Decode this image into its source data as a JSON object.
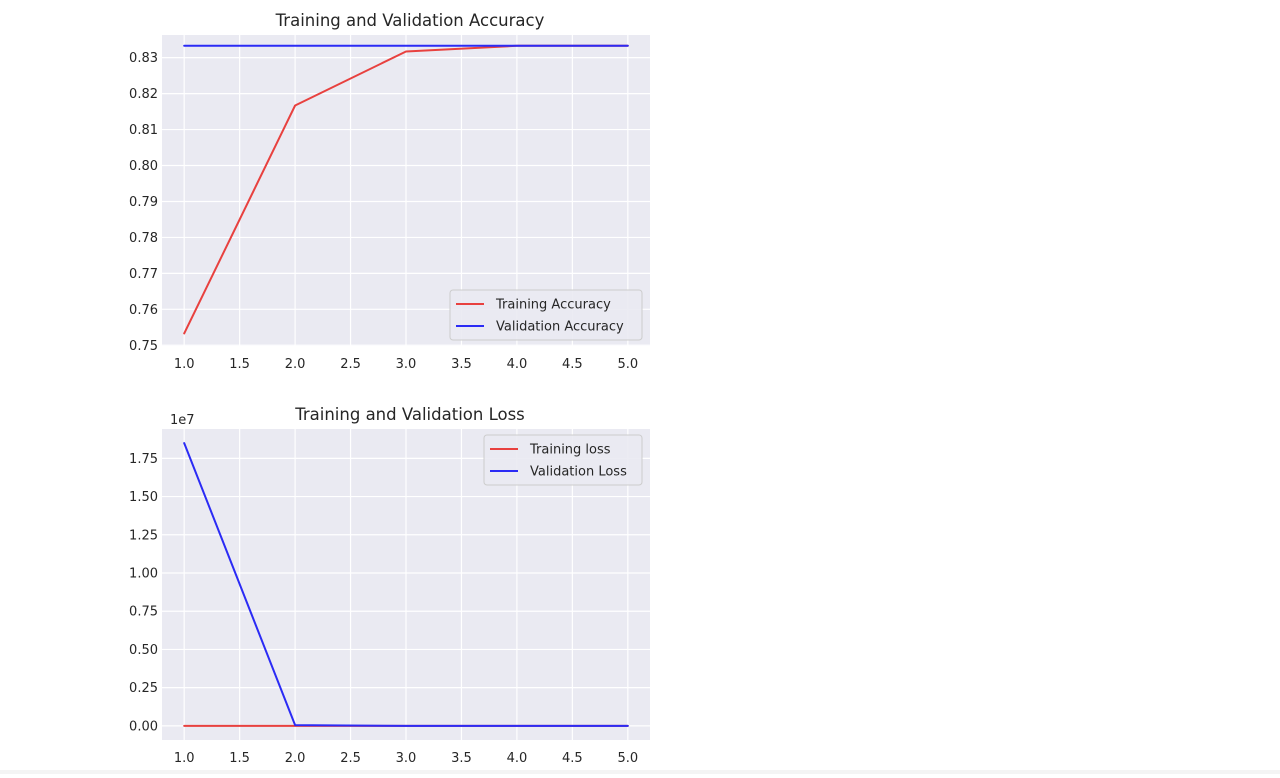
{
  "chart_data": [
    {
      "type": "line",
      "title": "Training and Validation Accuracy",
      "xlabel": "",
      "ylabel": "",
      "x": [
        1,
        2,
        3,
        4,
        5
      ],
      "xlim": [
        0.8,
        5.2
      ],
      "ylim": [
        0.7498,
        0.8363
      ],
      "xticks": [
        1.0,
        1.5,
        2.0,
        2.5,
        3.0,
        3.5,
        4.0,
        4.5,
        5.0
      ],
      "xtick_labels": [
        "1.0",
        "1.5",
        "2.0",
        "2.5",
        "3.0",
        "3.5",
        "4.0",
        "4.5",
        "5.0"
      ],
      "yticks": [
        0.75,
        0.76,
        0.77,
        0.78,
        0.79,
        0.8,
        0.81,
        0.82,
        0.83
      ],
      "ytick_labels": [
        "0.75",
        "0.76",
        "0.77",
        "0.78",
        "0.79",
        "0.80",
        "0.81",
        "0.82",
        "0.83"
      ],
      "offset_label": "",
      "grid": true,
      "legend_position": "lower-right",
      "series": [
        {
          "name": "Training Accuracy",
          "color": "#e8413f",
          "values": [
            0.7533,
            0.8167,
            0.8317,
            0.8333,
            0.8333
          ]
        },
        {
          "name": "Validation Accuracy",
          "color": "#2b2bf5",
          "values": [
            0.8333,
            0.8333,
            0.8333,
            0.8333,
            0.8333
          ]
        }
      ]
    },
    {
      "type": "line",
      "title": "Training and Validation Loss",
      "xlabel": "",
      "ylabel": "",
      "x": [
        1,
        2,
        3,
        4,
        5
      ],
      "xlim": [
        0.8,
        5.2
      ],
      "ylim": [
        -0.0925,
        1.942
      ],
      "xticks": [
        1.0,
        1.5,
        2.0,
        2.5,
        3.0,
        3.5,
        4.0,
        4.5,
        5.0
      ],
      "xtick_labels": [
        "1.0",
        "1.5",
        "2.0",
        "2.5",
        "3.0",
        "3.5",
        "4.0",
        "4.5",
        "5.0"
      ],
      "yticks": [
        0.0,
        0.25,
        0.5,
        0.75,
        1.0,
        1.25,
        1.5,
        1.75
      ],
      "ytick_labels": [
        "0.00",
        "0.25",
        "0.50",
        "0.75",
        "1.00",
        "1.25",
        "1.50",
        "1.75"
      ],
      "offset_label": "1e7",
      "grid": true,
      "legend_position": "upper-right",
      "series": [
        {
          "name": "Training loss",
          "color": "#e8413f",
          "values": [
            0.0,
            0.0,
            0.0,
            0.0,
            0.0
          ]
        },
        {
          "name": "Validation Loss",
          "color": "#2b2bf5",
          "values": [
            1.85,
            0.005,
            0.0,
            0.0,
            0.0
          ]
        }
      ]
    }
  ]
}
